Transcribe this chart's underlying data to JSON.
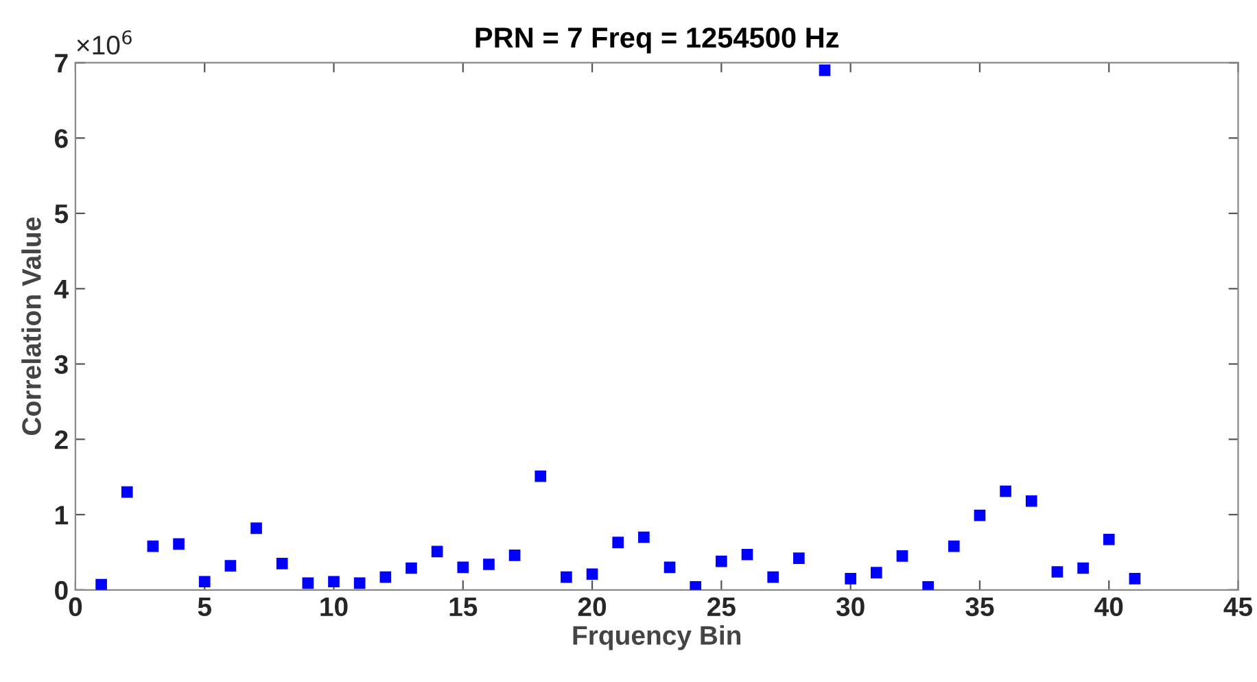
{
  "chart_data": {
    "type": "scatter",
    "title": "PRN = 7 Freq = 1254500 Hz",
    "xlabel": "Frquency Bin",
    "ylabel": "Correlation Value",
    "annotations": [
      "×10$^{6}$"
    ],
    "x": [
      1,
      2,
      3,
      4,
      5,
      6,
      7,
      8,
      9,
      10,
      11,
      12,
      13,
      14,
      15,
      16,
      17,
      18,
      19,
      20,
      21,
      22,
      23,
      24,
      25,
      26,
      27,
      28,
      29,
      30,
      31,
      32,
      33,
      34,
      35,
      36,
      37,
      38,
      39,
      40,
      41
    ],
    "series": [
      {
        "color": "#0000ff",
        "values": [
          0.07,
          1.3,
          0.58,
          0.61,
          0.11,
          0.32,
          0.82,
          0.35,
          0.09,
          0.11,
          0.09,
          0.17,
          0.29,
          0.51,
          0.3,
          0.34,
          0.46,
          1.51,
          0.17,
          0.21,
          0.63,
          0.7,
          0.3,
          0.04,
          0.38,
          0.47,
          0.17,
          0.42,
          6.9,
          0.15,
          0.23,
          0.45,
          0.04,
          0.58,
          0.99,
          1.31,
          1.18,
          0.24,
          0.29,
          0.67,
          0.15
        ]
      }
    ],
    "xlim": [
      0,
      45
    ],
    "ylim": [
      0,
      7
    ],
    "xticks": [
      0,
      5,
      10,
      15,
      20,
      25,
      30,
      35,
      40,
      45
    ],
    "yticks": [
      0,
      1,
      2,
      3,
      4,
      5,
      6,
      7
    ],
    "marker": "square",
    "grid": false,
    "legend": false
  }
}
